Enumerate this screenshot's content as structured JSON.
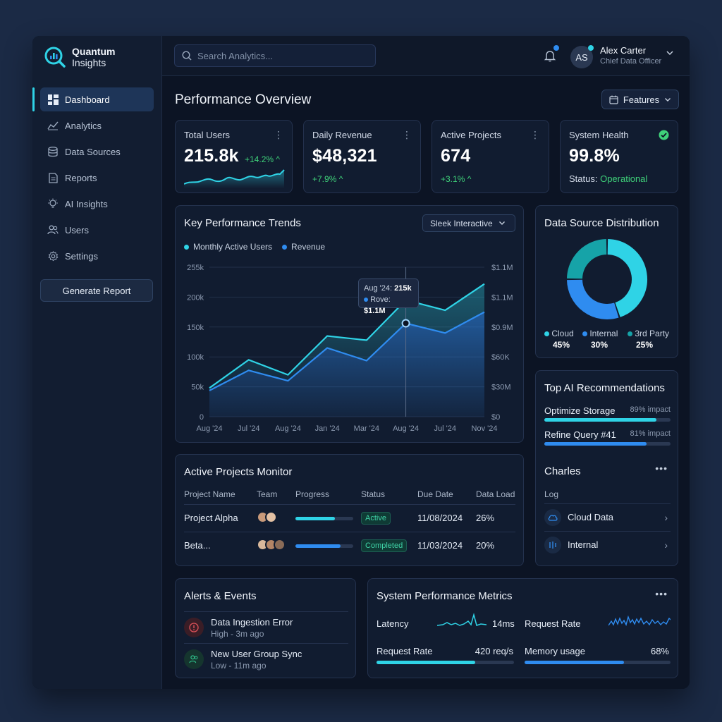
{
  "brand": {
    "line1": "Quantum",
    "line2": "Insights"
  },
  "sidebar": {
    "items": [
      {
        "label": "Dashboard",
        "icon": "dashboard-icon",
        "active": true
      },
      {
        "label": "Analytics",
        "icon": "analytics-icon"
      },
      {
        "label": "Data Sources",
        "icon": "database-icon"
      },
      {
        "label": "Reports",
        "icon": "reports-icon"
      },
      {
        "label": "AI Insights",
        "icon": "ai-insights-icon"
      },
      {
        "label": "Users",
        "icon": "users-icon"
      },
      {
        "label": "Settings",
        "icon": "gear-icon"
      }
    ],
    "generate_label": "Generate Report"
  },
  "topbar": {
    "search_placeholder": "Search Analytics...",
    "user": {
      "initials": "AS",
      "name": "Alex Carter",
      "role": "Chief Data Officer"
    }
  },
  "main": {
    "title": "Performance Overview",
    "features_label": "Features"
  },
  "kpis": [
    {
      "label": "Total Users",
      "value": "215.8k",
      "delta": "+14.2% ^"
    },
    {
      "label": "Daily Revenue",
      "value": "$48,321",
      "delta": "+7.9% ^"
    },
    {
      "label": "Active Projects",
      "value": "674",
      "delta": "+3.1% ^"
    },
    {
      "label": "System Health",
      "value": "99.8%",
      "status_label": "Status:",
      "status_value": "Operational"
    }
  ],
  "trends": {
    "title": "Key Performance Trends",
    "dropdown": "Sleek Interactive",
    "tooltip": {
      "line1_label": "Aug '24:",
      "line1_value": "215k",
      "line2_label": "Rove:",
      "line2_value": "$1.1M"
    }
  },
  "chart_data": {
    "type": "area",
    "categories": [
      "Aug '24",
      "Jul '24",
      "Aug '24",
      "Jan '24",
      "Mar '24",
      "Aug '24",
      "Jul '24",
      "Nov '24"
    ],
    "series": [
      {
        "name": "Monthly Active Users",
        "color": "#2fd3e6",
        "values": [
          48000,
          95000,
          70000,
          135000,
          128000,
          195000,
          178000,
          222000
        ],
        "axis": "left"
      },
      {
        "name": "Revenue",
        "color": "#2f8cf0",
        "values": [
          0.35,
          0.62,
          0.48,
          0.92,
          0.75,
          1.25,
          1.12,
          1.4
        ],
        "axis": "right"
      }
    ],
    "y_left_ticks": [
      "255k",
      "200k",
      "150k",
      "100k",
      "50k",
      "0"
    ],
    "y_right_ticks": [
      "$1.1M",
      "$1.1M",
      "$0.9M",
      "$60K",
      "$30M",
      "$0"
    ],
    "ylim_left": [
      0,
      250000
    ],
    "ylim_right": [
      0,
      2.0
    ],
    "grid": true,
    "legend": "top-left"
  },
  "distribution": {
    "title": "Data Source Distribution",
    "segments": [
      {
        "label": "Cloud",
        "value": 45,
        "pct": "45%",
        "color": "#2fd3e6"
      },
      {
        "label": "Internal",
        "value": 30,
        "pct": "30%",
        "color": "#2f8cf0"
      },
      {
        "label": "3rd Party",
        "value": 25,
        "pct": "25%",
        "color": "#16a3a8"
      }
    ]
  },
  "recommendations": {
    "title": "Top AI Recommendations",
    "items": [
      {
        "label": "Optimize Storage",
        "impact": "89% impact",
        "level": 0.89,
        "color": "#2fd3e6"
      },
      {
        "label": "Refine Query #41",
        "impact": "81% impact",
        "level": 0.81,
        "color": "#2f8cf0"
      }
    ],
    "charts_title": "Charles",
    "log_label": "Log",
    "links": [
      {
        "label": "Cloud Data",
        "icon": "cloud-icon"
      },
      {
        "label": "Internal",
        "icon": "server-icon"
      }
    ]
  },
  "projects": {
    "title": "Active Projects Monitor",
    "columns": [
      "Project Name",
      "Team",
      "Progress",
      "Status",
      "Due Date",
      "Data Load"
    ],
    "rows": [
      {
        "name": "Project Alpha",
        "progress": 0.68,
        "progress_color": "#2fd3e6",
        "status": "Active",
        "due": "11/08/2024",
        "load": "26%"
      },
      {
        "name": "Beta...",
        "progress": 0.78,
        "progress_color": "#2f8cf0",
        "status": "Completed",
        "due": "11/03/2024",
        "load": "20%"
      }
    ]
  },
  "alerts": {
    "title": "Alerts & Events",
    "items": [
      {
        "title": "Data Ingestion Error",
        "sub": "High - 3m ago",
        "icon": "error-icon",
        "color": "#e0525a"
      },
      {
        "title": "New User Group Sync",
        "sub": "Low - 11m ago",
        "icon": "users-icon",
        "color": "#2fc28c"
      }
    ]
  },
  "metrics": {
    "title": "System Performance Metrics",
    "latency_label": "Latency",
    "latency_value": "14ms",
    "request_rate_label_top": "Request Rate",
    "request_rate_label": "Request Rate",
    "request_rate_value": "420 req/s",
    "request_rate_level": 0.72,
    "memory_label": "Memory usage",
    "memory_value": "68%",
    "memory_level": 0.68
  }
}
